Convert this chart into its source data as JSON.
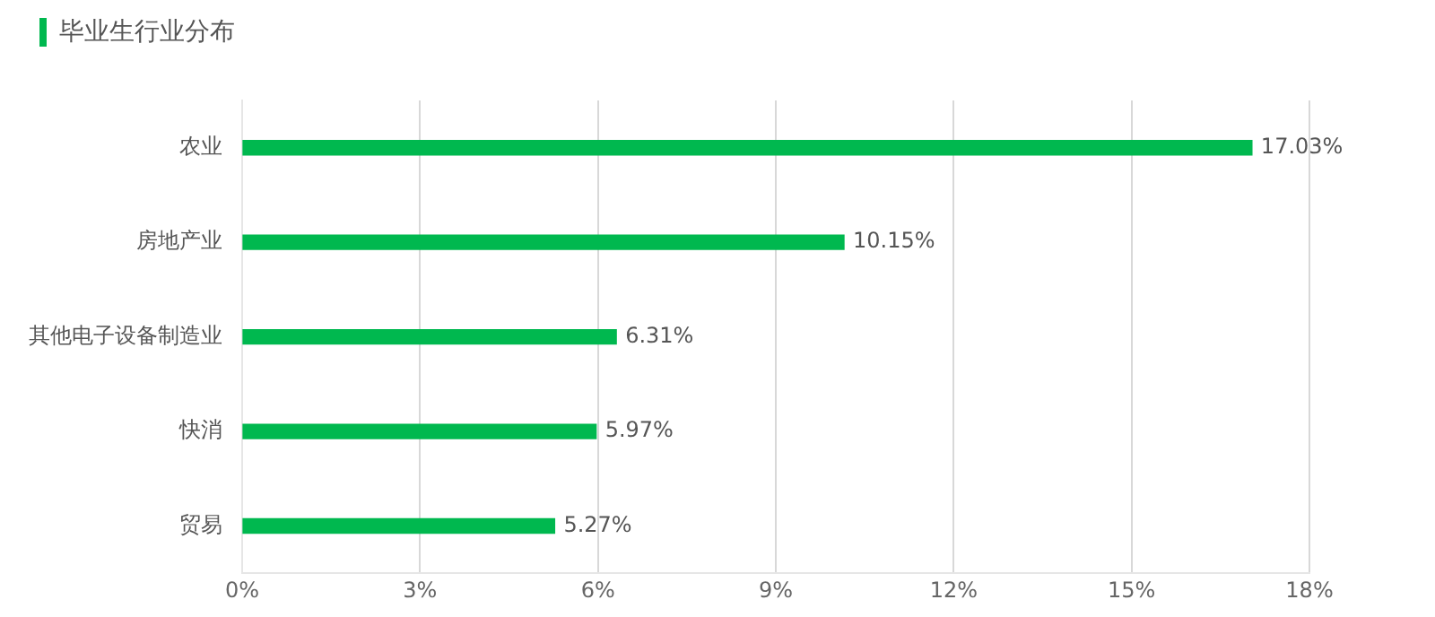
{
  "chart_data": {
    "type": "bar",
    "orientation": "horizontal",
    "title": "毕业生行业分布",
    "categories": [
      "农业",
      "房地产业",
      "其他电子设备制造业",
      "快消",
      "贸易"
    ],
    "values": [
      17.03,
      10.15,
      6.31,
      5.97,
      5.27
    ],
    "value_labels": [
      "17.03%",
      "10.15%",
      "6.31%",
      "5.97%",
      "5.27%"
    ],
    "color": "#00b84f",
    "xlim": [
      0,
      18
    ],
    "xticks": [
      {
        "value": 0,
        "label": "0%"
      },
      {
        "value": 3,
        "label": "3%"
      },
      {
        "value": 6,
        "label": "6%"
      },
      {
        "value": 9,
        "label": "9%"
      },
      {
        "value": 12,
        "label": "12%"
      },
      {
        "value": 15,
        "label": "15%"
      },
      {
        "value": 18,
        "label": "18%"
      }
    ],
    "grid": "x",
    "legend": false
  }
}
